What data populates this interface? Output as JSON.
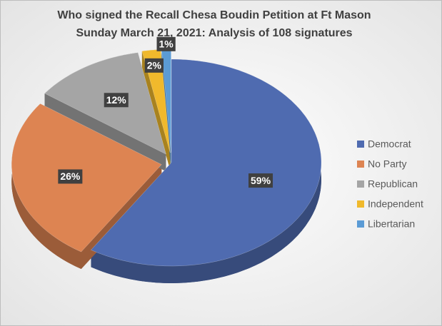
{
  "chart_data": {
    "type": "pie",
    "title": "Who signed the Recall Chesa Boudin Petition at Ft Mason",
    "subtitle": "Sunday March 21, 2021: Analysis of 108 signatures",
    "categories": [
      "Democrat",
      "No Party",
      "Republican",
      "Independent",
      "Libertarian"
    ],
    "values": [
      59,
      26,
      12,
      2,
      1
    ],
    "value_labels": [
      "59%",
      "26%",
      "12%",
      "2%",
      "1%"
    ],
    "colors": [
      "#4f6bb0",
      "#dd8452",
      "#a5a5a5",
      "#f0b92c",
      "#5b9bd5"
    ],
    "legend": "right"
  }
}
